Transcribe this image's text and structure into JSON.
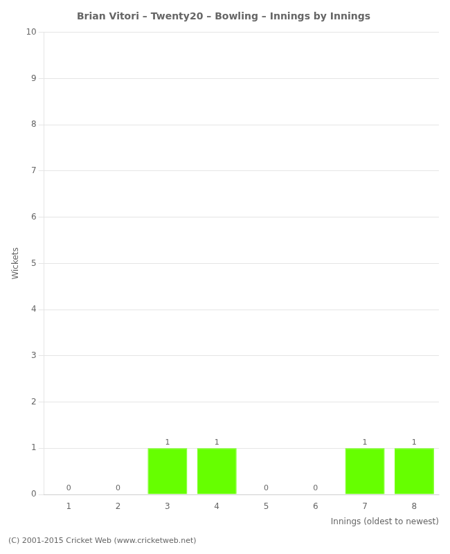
{
  "chart_data": {
    "type": "bar",
    "title": "Brian Vitori – Twenty20 – Bowling – Innings by Innings",
    "xlabel": "Innings (oldest to newest)",
    "ylabel": "Wickets",
    "categories": [
      "1",
      "2",
      "3",
      "4",
      "5",
      "6",
      "7",
      "8"
    ],
    "values": [
      0,
      0,
      1,
      1,
      0,
      0,
      1,
      1
    ],
    "color": "#66ff00",
    "ylim": [
      0,
      10
    ],
    "yticks": [
      0,
      1,
      2,
      3,
      4,
      5,
      6,
      7,
      8,
      9,
      10
    ],
    "grid": true,
    "data_labels": true,
    "annotations": [
      "(C) 2001-2015 Cricket Web (www.cricketweb.net)"
    ]
  }
}
